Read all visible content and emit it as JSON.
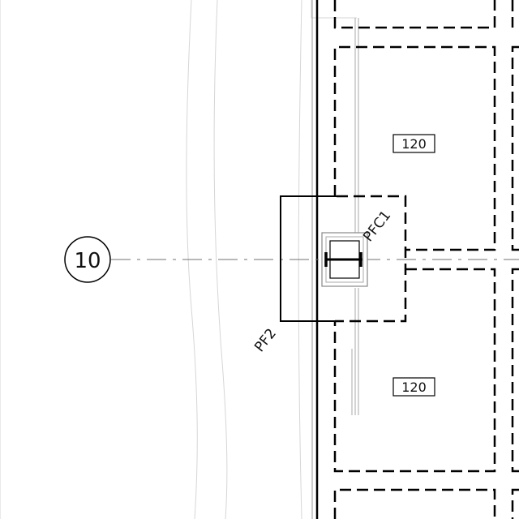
{
  "drawing": {
    "grid_marker": "10",
    "slab_tags": [
      "120",
      "120"
    ],
    "column_tag": "PFC1",
    "footing_tag": "PF2"
  },
  "colors": {
    "line": "#000000",
    "faint": "#c8c8c8",
    "gridline": "#707070",
    "background": "#ffffff"
  }
}
